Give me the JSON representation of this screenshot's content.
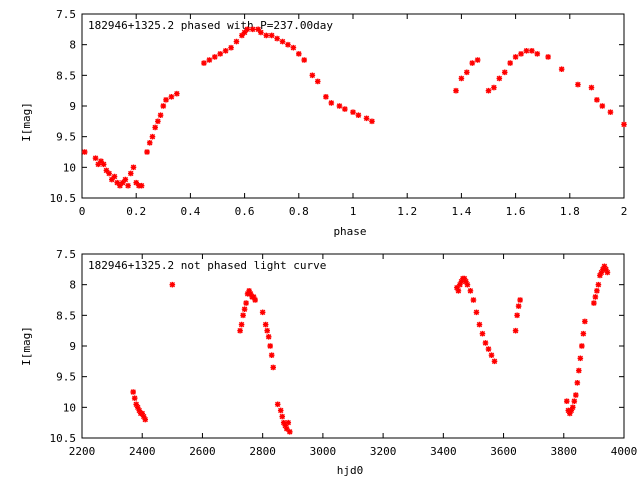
{
  "chart_data": [
    {
      "type": "scatter",
      "title": "182946+1325.2 phased with P=237.00day",
      "xlabel": "phase",
      "ylabel": "I[mag]",
      "xlim": [
        0,
        2
      ],
      "ylim": [
        7.5,
        10.5
      ],
      "y_inverted": true,
      "grid": false,
      "xticks": [
        "0",
        "0.2",
        "0.4",
        "0.6",
        "0.8",
        "1",
        "1.2",
        "1.4",
        "1.6",
        "1.8",
        "2"
      ],
      "yticks": [
        "7.5",
        "8",
        "8.5",
        "9",
        "9.5",
        "10",
        "10.5"
      ],
      "marker": "cross",
      "color": "#ff0000",
      "series": [
        {
          "x": [
            0.01,
            0.05,
            0.06,
            0.07,
            0.08,
            0.09,
            0.1,
            0.11,
            0.12,
            0.13,
            0.14,
            0.15,
            0.16,
            0.17,
            0.18,
            0.19,
            0.2,
            0.21,
            0.22,
            0.24,
            0.25,
            0.26,
            0.27,
            0.28,
            0.29,
            0.3,
            0.31,
            0.33,
            0.35,
            0.45,
            0.47,
            0.49,
            0.51,
            0.53,
            0.55,
            0.57,
            0.59,
            0.6,
            0.61,
            0.63,
            0.65,
            0.66,
            0.68,
            0.7,
            0.72,
            0.74,
            0.76,
            0.78,
            0.8,
            0.82,
            0.85,
            0.87,
            0.9,
            0.92,
            0.95,
            0.97,
            1.0,
            1.02,
            1.05,
            1.07,
            1.38,
            1.4,
            1.42,
            1.44,
            1.46,
            1.5,
            1.52,
            1.54,
            1.56,
            1.58,
            1.6,
            1.62,
            1.64,
            1.66,
            1.68,
            1.72,
            1.77,
            1.83,
            1.88,
            1.9,
            1.92,
            1.95,
            2.0
          ],
          "y": [
            9.75,
            9.85,
            9.95,
            9.9,
            9.95,
            10.05,
            10.1,
            10.2,
            10.15,
            10.25,
            10.3,
            10.25,
            10.2,
            10.3,
            10.1,
            10.0,
            10.25,
            10.3,
            10.3,
            9.75,
            9.6,
            9.5,
            9.35,
            9.25,
            9.15,
            9.0,
            8.9,
            8.85,
            8.8,
            8.3,
            8.25,
            8.2,
            8.15,
            8.1,
            8.05,
            7.95,
            7.85,
            7.8,
            7.75,
            7.75,
            7.75,
            7.8,
            7.85,
            7.85,
            7.9,
            7.95,
            8.0,
            8.05,
            8.15,
            8.25,
            8.5,
            8.6,
            8.85,
            8.95,
            9.0,
            9.05,
            9.1,
            9.15,
            9.2,
            9.25,
            8.75,
            8.55,
            8.45,
            8.3,
            8.25,
            8.75,
            8.7,
            8.55,
            8.45,
            8.3,
            8.2,
            8.15,
            8.1,
            8.1,
            8.15,
            8.2,
            8.4,
            8.65,
            8.7,
            8.9,
            9.0,
            9.1,
            9.3
          ]
        }
      ]
    },
    {
      "type": "scatter",
      "title": "182946+1325.2 not phased light curve",
      "xlabel": "hjd0",
      "ylabel": "I[mag]",
      "xlim": [
        2200,
        4000
      ],
      "ylim": [
        7.5,
        10.5
      ],
      "y_inverted": true,
      "grid": false,
      "xticks": [
        "2200",
        "2400",
        "2600",
        "2800",
        "3000",
        "3200",
        "3400",
        "3600",
        "3800",
        "4000"
      ],
      "yticks": [
        "7.5",
        "8",
        "8.5",
        "9",
        "9.5",
        "10",
        "10.5"
      ],
      "marker": "cross",
      "color": "#ff0000",
      "series": [
        {
          "x": [
            2370,
            2375,
            2380,
            2385,
            2390,
            2395,
            2400,
            2405,
            2410,
            2500,
            2725,
            2730,
            2735,
            2740,
            2745,
            2750,
            2755,
            2760,
            2765,
            2770,
            2775,
            2800,
            2810,
            2815,
            2820,
            2825,
            2830,
            2835,
            2850,
            2860,
            2865,
            2870,
            2875,
            2880,
            2885,
            2890,
            3445,
            3450,
            3455,
            3460,
            3465,
            3470,
            3475,
            3480,
            3490,
            3500,
            3510,
            3520,
            3530,
            3540,
            3550,
            3560,
            3570,
            3640,
            3645,
            3650,
            3655,
            3810,
            3815,
            3820,
            3825,
            3830,
            3835,
            3840,
            3845,
            3850,
            3855,
            3860,
            3865,
            3870,
            3900,
            3905,
            3910,
            3915,
            3920,
            3925,
            3930,
            3935,
            3940,
            3945
          ],
          "y": [
            9.75,
            9.85,
            9.95,
            10.0,
            10.05,
            10.1,
            10.1,
            10.15,
            10.2,
            8.0,
            8.75,
            8.65,
            8.5,
            8.4,
            8.3,
            8.15,
            8.1,
            8.15,
            8.2,
            8.2,
            8.25,
            8.45,
            8.65,
            8.75,
            8.85,
            9.0,
            9.15,
            9.35,
            9.95,
            10.05,
            10.15,
            10.25,
            10.3,
            10.35,
            10.25,
            10.4,
            8.05,
            8.1,
            8.0,
            7.95,
            7.9,
            7.9,
            7.95,
            8.0,
            8.1,
            8.25,
            8.45,
            8.65,
            8.8,
            8.95,
            9.05,
            9.15,
            9.25,
            8.75,
            8.5,
            8.35,
            8.25,
            9.9,
            10.05,
            10.1,
            10.05,
            10.0,
            9.9,
            9.8,
            9.6,
            9.4,
            9.2,
            9.0,
            8.8,
            8.6,
            8.3,
            8.2,
            8.1,
            8.0,
            7.85,
            7.8,
            7.75,
            7.7,
            7.75,
            7.8
          ]
        }
      ]
    }
  ]
}
